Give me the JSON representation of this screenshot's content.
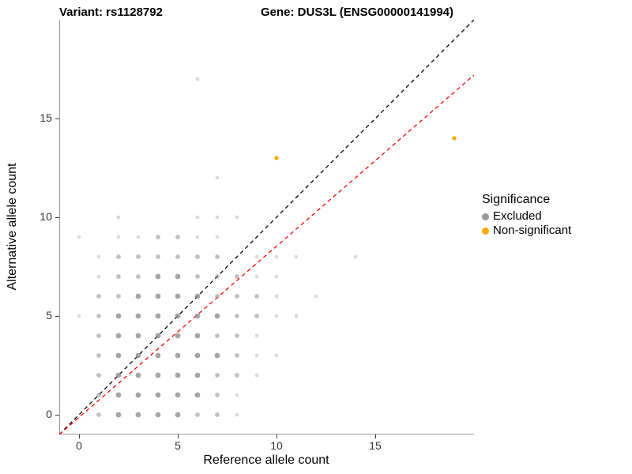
{
  "titles": {
    "variant": "Variant: rs1128792",
    "gene": "Gene: DUS3L (ENSG00000141994)"
  },
  "chart_data": {
    "type": "scatter",
    "xlabel": "Reference allele count",
    "ylabel": "Alternative allele count",
    "xlim": [
      -1,
      20
    ],
    "ylim": [
      -1,
      20
    ],
    "x_ticks": [
      0,
      5,
      10,
      15
    ],
    "y_ticks": [
      0,
      5,
      10,
      15
    ],
    "grid": false,
    "axis_color": "#9a9a9a",
    "tick_label_color": "#333333",
    "point_fields": [
      "ref_allele_count",
      "alt_allele_count",
      "overlap_weight"
    ],
    "legend": {
      "title": "Significance",
      "position": "right",
      "items": [
        {
          "label": "Excluded",
          "color": "#9b9b9b"
        },
        {
          "label": "Non-significant",
          "color": "#FFA500"
        }
      ]
    },
    "series": [
      {
        "name": "Excluded",
        "color": "#8c8c8c",
        "points": [
          [
            1,
            0,
            2
          ],
          [
            2,
            0,
            3
          ],
          [
            3,
            0,
            3
          ],
          [
            4,
            0,
            3
          ],
          [
            5,
            0,
            3
          ],
          [
            6,
            0,
            2
          ],
          [
            7,
            0,
            2
          ],
          [
            8,
            0,
            1
          ],
          [
            1,
            1,
            2
          ],
          [
            2,
            1,
            3
          ],
          [
            3,
            1,
            3
          ],
          [
            4,
            1,
            3
          ],
          [
            5,
            1,
            3
          ],
          [
            6,
            1,
            3
          ],
          [
            7,
            1,
            2
          ],
          [
            8,
            1,
            1
          ],
          [
            1,
            2,
            2
          ],
          [
            2,
            2,
            3
          ],
          [
            3,
            2,
            3
          ],
          [
            4,
            2,
            3
          ],
          [
            5,
            2,
            3
          ],
          [
            6,
            2,
            3
          ],
          [
            7,
            2,
            2
          ],
          [
            8,
            2,
            2
          ],
          [
            9,
            2,
            1
          ],
          [
            1,
            3,
            2
          ],
          [
            2,
            3,
            3
          ],
          [
            3,
            3,
            3
          ],
          [
            4,
            3,
            3
          ],
          [
            5,
            3,
            3
          ],
          [
            6,
            3,
            3
          ],
          [
            7,
            3,
            3
          ],
          [
            8,
            3,
            2
          ],
          [
            9,
            3,
            1
          ],
          [
            10,
            3,
            1
          ],
          [
            1,
            4,
            2
          ],
          [
            2,
            4,
            3
          ],
          [
            3,
            4,
            3
          ],
          [
            4,
            4,
            3
          ],
          [
            5,
            4,
            3
          ],
          [
            6,
            4,
            3
          ],
          [
            7,
            4,
            2
          ],
          [
            8,
            4,
            2
          ],
          [
            9,
            4,
            1
          ],
          [
            0,
            5,
            1
          ],
          [
            1,
            5,
            2
          ],
          [
            2,
            5,
            3
          ],
          [
            3,
            5,
            3
          ],
          [
            4,
            5,
            3
          ],
          [
            5,
            5,
            3
          ],
          [
            6,
            5,
            3
          ],
          [
            7,
            5,
            3
          ],
          [
            8,
            5,
            2
          ],
          [
            9,
            5,
            2
          ],
          [
            10,
            5,
            1
          ],
          [
            11,
            5,
            1
          ],
          [
            1,
            6,
            2
          ],
          [
            2,
            6,
            2
          ],
          [
            3,
            6,
            3
          ],
          [
            4,
            6,
            3
          ],
          [
            5,
            6,
            3
          ],
          [
            6,
            6,
            3
          ],
          [
            7,
            6,
            2
          ],
          [
            8,
            6,
            2
          ],
          [
            9,
            6,
            2
          ],
          [
            10,
            6,
            1
          ],
          [
            12,
            6,
            1
          ],
          [
            1,
            7,
            1
          ],
          [
            2,
            7,
            2
          ],
          [
            3,
            7,
            2
          ],
          [
            4,
            7,
            3
          ],
          [
            5,
            7,
            3
          ],
          [
            6,
            7,
            2
          ],
          [
            7,
            7,
            2
          ],
          [
            8,
            7,
            2
          ],
          [
            9,
            7,
            1
          ],
          [
            10,
            7,
            1
          ],
          [
            1,
            8,
            1
          ],
          [
            2,
            8,
            2
          ],
          [
            3,
            8,
            2
          ],
          [
            4,
            8,
            2
          ],
          [
            5,
            8,
            2
          ],
          [
            6,
            8,
            2
          ],
          [
            7,
            8,
            2
          ],
          [
            9,
            8,
            1
          ],
          [
            10,
            8,
            1
          ],
          [
            11,
            8,
            1
          ],
          [
            14,
            8,
            1
          ],
          [
            0,
            9,
            1
          ],
          [
            2,
            9,
            1
          ],
          [
            3,
            9,
            1
          ],
          [
            4,
            9,
            2
          ],
          [
            5,
            9,
            2
          ],
          [
            6,
            9,
            1
          ],
          [
            7,
            9,
            1
          ],
          [
            2,
            10,
            1
          ],
          [
            6,
            10,
            1
          ],
          [
            7,
            10,
            1
          ],
          [
            8,
            10,
            1
          ],
          [
            7,
            12,
            1
          ],
          [
            6,
            17,
            1
          ]
        ]
      },
      {
        "name": "Non-significant",
        "color": "#FFA500",
        "points": [
          [
            10,
            13,
            1
          ],
          [
            19,
            14,
            1
          ]
        ]
      }
    ],
    "lines": [
      {
        "name": "identity-line",
        "style": "dashed",
        "color": "#000000",
        "x1": -1,
        "y1": -1,
        "x2": 20,
        "y2": 20
      },
      {
        "name": "fitted-ratio-line",
        "style": "dashed",
        "color": "#FF0000",
        "x1": -1,
        "y1": -1,
        "x2": 20,
        "y2": 17.2
      }
    ]
  }
}
